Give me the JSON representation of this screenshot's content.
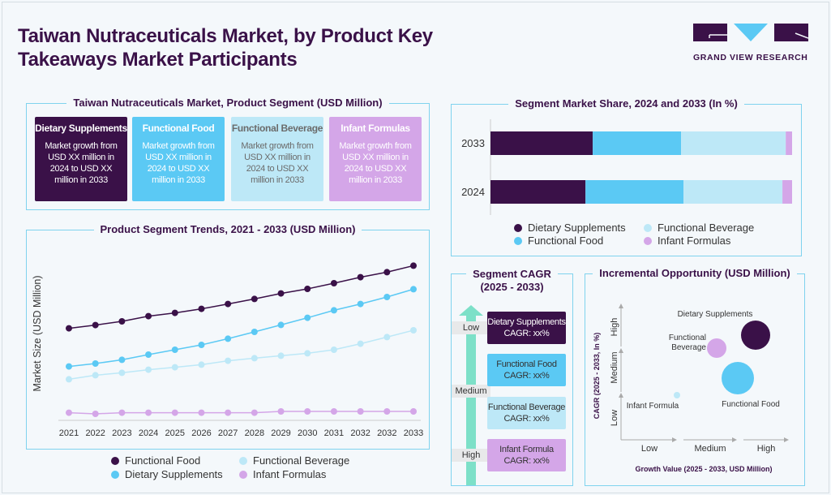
{
  "header": {
    "title_line1": "Taiwan Nutraceuticals Market, by Product Key",
    "title_line2": "Takeaways Market Participants",
    "logo_text": "GRAND VIEW RESEARCH"
  },
  "colors": {
    "dietary_supplements": "#3a1148",
    "functional_food": "#5bc9f4",
    "functional_beverage": "#bde8f7",
    "infant_formulas": "#d4a6e8",
    "border": "#7fd3ee",
    "arrow": "#7de0c8"
  },
  "segment_panel": {
    "title": "Taiwan Nutraceuticals Market, Product Segment (USD Million)",
    "cards": [
      {
        "name": "Dietary Supplements",
        "text": "Market growth from USD XX million in 2024 to USD XX million in 2033"
      },
      {
        "name": "Functional Food",
        "text": "Market growth from USD XX million in 2024 to USD XX million in 2033"
      },
      {
        "name": "Functional Beverage",
        "text": "Market growth from USD XX million in 2024 to USD XX million in 2033"
      },
      {
        "name": "Infant Formulas",
        "text": "Market growth from USD XX million in 2024 to USD XX million in 2033"
      }
    ]
  },
  "chart_data": [
    {
      "type": "line",
      "title": "Product Segment Trends, 2021 - 2033 (USD Million)",
      "ylabel": "Market Size (USD Million)",
      "xlabel": "",
      "categories": [
        "2021",
        "2022",
        "2023",
        "2024",
        "2025",
        "2026",
        "2027",
        "2028",
        "2029",
        "2030",
        "2031",
        "2032",
        "2032",
        "2033"
      ],
      "ylim": [
        0,
        100
      ],
      "grid": false,
      "legend": "bottom",
      "series": [
        {
          "name": "Functional Food",
          "color": "#3a1148",
          "values": [
            56.7,
            58.7,
            61,
            64.2,
            66.2,
            68.7,
            71.7,
            74.8,
            78.2,
            81,
            84.5,
            88.2,
            91.3,
            95.3
          ]
        },
        {
          "name": "Dietary Supplements",
          "color": "#5bc9f4",
          "values": [
            33.2,
            35,
            37.3,
            40.5,
            43.5,
            46.5,
            50.3,
            54.5,
            58.8,
            63.2,
            67.8,
            71.7,
            76,
            80.8
          ]
        },
        {
          "name": "Functional Beverage",
          "color": "#bde8f7",
          "values": [
            25.3,
            27.8,
            29.3,
            31.2,
            32.7,
            34.3,
            36.7,
            38.3,
            39.8,
            41.3,
            43.5,
            47.2,
            51.3,
            55.5
          ]
        },
        {
          "name": "Infant Formulas",
          "color": "#d4a6e8",
          "values": [
            4.7,
            4,
            4.7,
            4.7,
            4.7,
            4.7,
            4.7,
            4.7,
            5.5,
            5.5,
            5.5,
            5.5,
            5.5,
            5.5
          ]
        }
      ]
    },
    {
      "type": "bar",
      "orientation": "horizontal-stacked",
      "title": "Segment Market Share, 2024 and 2033 (In %)",
      "categories": [
        "2033",
        "2024"
      ],
      "xlim": [
        0,
        100
      ],
      "legend": "bottom",
      "series": [
        {
          "name": "Dietary Supplements",
          "color": "#3a1148",
          "values": [
            33.9,
            31.5
          ]
        },
        {
          "name": "Functional Food",
          "color": "#5bc9f4",
          "values": [
            29.3,
            32.5
          ]
        },
        {
          "name": "Functional Beverage",
          "color": "#bde8f7",
          "values": [
            34.7,
            32.8
          ]
        },
        {
          "name": "Infant Formulas",
          "color": "#d4a6e8",
          "values": [
            2.1,
            3.2
          ]
        }
      ]
    },
    {
      "type": "scatter",
      "subtype": "bubble",
      "title": "Incremental Opportunity (USD Million)",
      "xlabel": "Growth Value (2025 - 2033, USD Million)",
      "ylabel": "CAGR (2025 - 2033, In %)",
      "x_ticks": [
        "Low",
        "Medium",
        "High"
      ],
      "y_ticks": [
        "Low",
        "Medium",
        "High"
      ],
      "points": [
        {
          "name": "Dietary Supplements",
          "color": "#3a1148",
          "growth": "High",
          "cagr": "High",
          "size": "large"
        },
        {
          "name": "Functional Beverage",
          "color": "#d4a6e8",
          "growth": "Medium",
          "cagr": "Medium-High",
          "size": "medium"
        },
        {
          "name": "Functional Food",
          "color": "#5bc9f4",
          "growth": "Medium-High",
          "cagr": "Medium",
          "size": "large"
        },
        {
          "name": "Infant Formula",
          "color": "#bde8f7",
          "growth": "Low-Medium",
          "cagr": "Low-Medium",
          "size": "small"
        }
      ]
    }
  ],
  "cagr_panel": {
    "title_line1": "Segment CAGR",
    "title_line2": "(2025 - 2033)",
    "levels": [
      "Low",
      "Medium",
      "High"
    ],
    "boxes": [
      {
        "name": "Dietary Supplements",
        "cagr": "CAGR: xx%"
      },
      {
        "name": "Functional Food",
        "cagr": "CAGR: xx%"
      },
      {
        "name": "Functional Beverage",
        "cagr": "CAGR: xx%"
      },
      {
        "name": "Infant Formula",
        "cagr": "CAGR: xx%"
      }
    ]
  }
}
